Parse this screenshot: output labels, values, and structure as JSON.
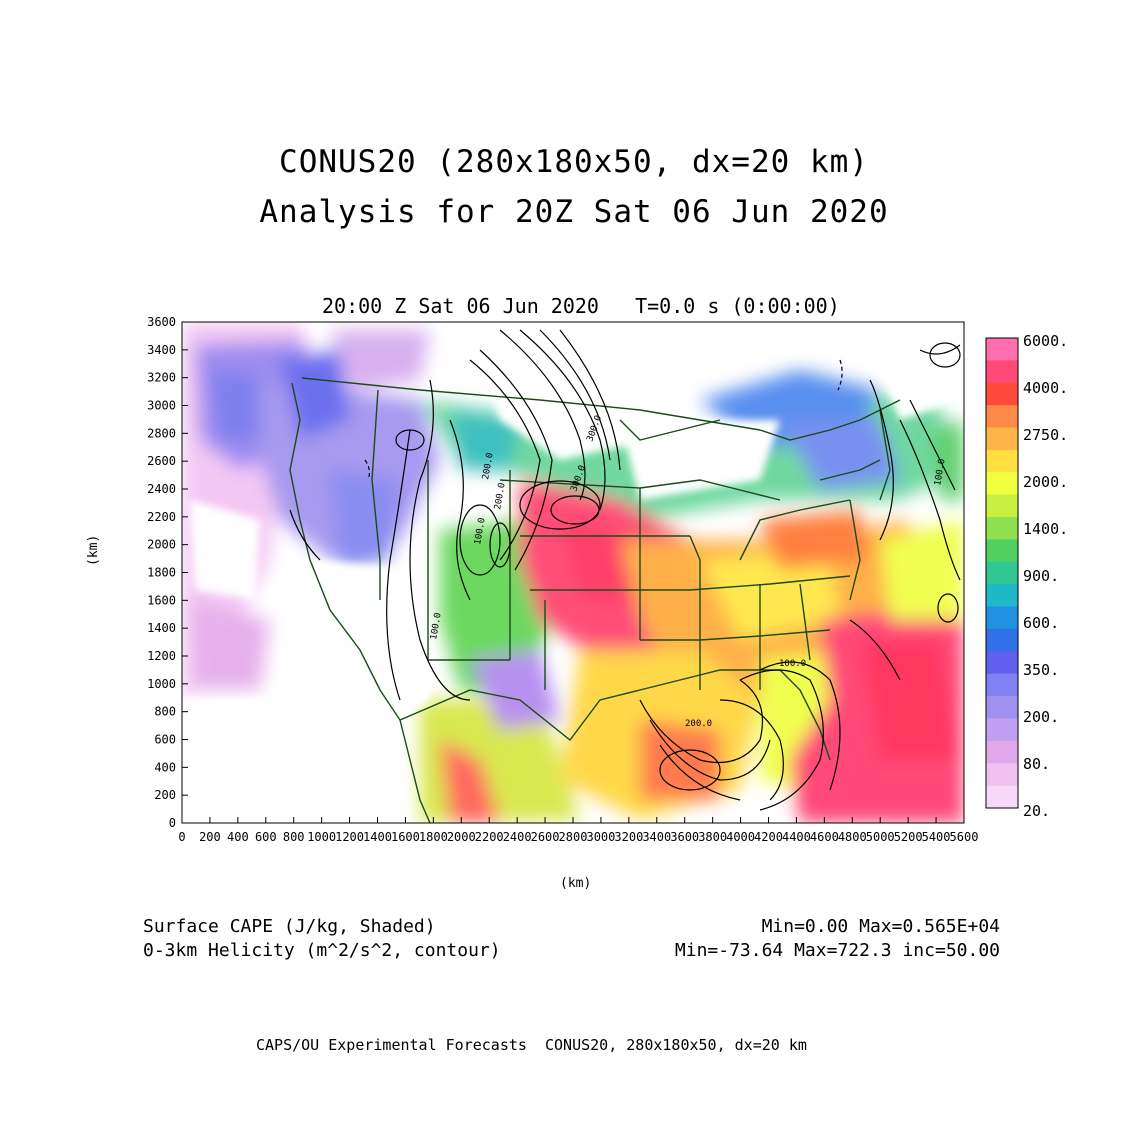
{
  "title": {
    "line1": "CONUS20 (280x180x50, dx=20 km)",
    "line2": "Analysis for 20Z Sat 06 Jun 2020"
  },
  "subtitle": "20:00 Z Sat 06 Jun 2020   T=0.0 s (0:00:00)",
  "axes": {
    "x_unit": "(km)",
    "y_unit": "(km)",
    "x_ticks": [
      "0",
      "200",
      "400",
      "600",
      "800",
      "1000",
      "1200",
      "1400",
      "1600",
      "1800",
      "2000",
      "2200",
      "2400",
      "2600",
      "2800",
      "3000",
      "3200",
      "3400",
      "3600",
      "3800",
      "4000",
      "4200",
      "4400",
      "4600",
      "4800",
      "5000",
      "5200",
      "5400",
      "5600"
    ],
    "y_ticks": [
      "0",
      "200",
      "400",
      "600",
      "800",
      "1000",
      "1200",
      "1400",
      "1600",
      "1800",
      "2000",
      "2200",
      "2400",
      "2600",
      "2800",
      "3000",
      "3200",
      "3400",
      "3600"
    ],
    "x_range": [
      0,
      5600
    ],
    "y_range": [
      0,
      3600
    ]
  },
  "colorbar": {
    "labels": [
      "6000.",
      "4000.",
      "2750.",
      "2000.",
      "1400.",
      "900.",
      "600.",
      "350.",
      "200.",
      "80.",
      "20."
    ],
    "colors": [
      "#ff6fb0",
      "#ff4a78",
      "#ff4a3c",
      "#ff8a48",
      "#ffb44a",
      "#ffe040",
      "#f0ff40",
      "#c8f040",
      "#90e050",
      "#50d060",
      "#30c890",
      "#20b8c8",
      "#2090e0",
      "#3070e8",
      "#6060f0",
      "#8080f0",
      "#a090f0",
      "#c0a0f0",
      "#e0a8e8",
      "#f0c0f0",
      "#f8d8f8"
    ]
  },
  "contour_labels": [
    "100.0",
    "100.0",
    "100.0",
    "200.0",
    "300.0",
    "300.0",
    "200.0",
    "100.0",
    "200.0"
  ],
  "legend": {
    "cape_label": "Surface CAPE (J/kg, Shaded)",
    "cape_stats": "Min=0.00 Max=0.565E+04",
    "helicity_label": "0-3km Helicity (m^2/s^2, contour)",
    "helicity_stats": "Min=-73.64 Max=722.3 inc=50.00"
  },
  "footer": "CAPS/OU Experimental Forecasts  CONUS20, 280x180x50, dx=20 km"
}
